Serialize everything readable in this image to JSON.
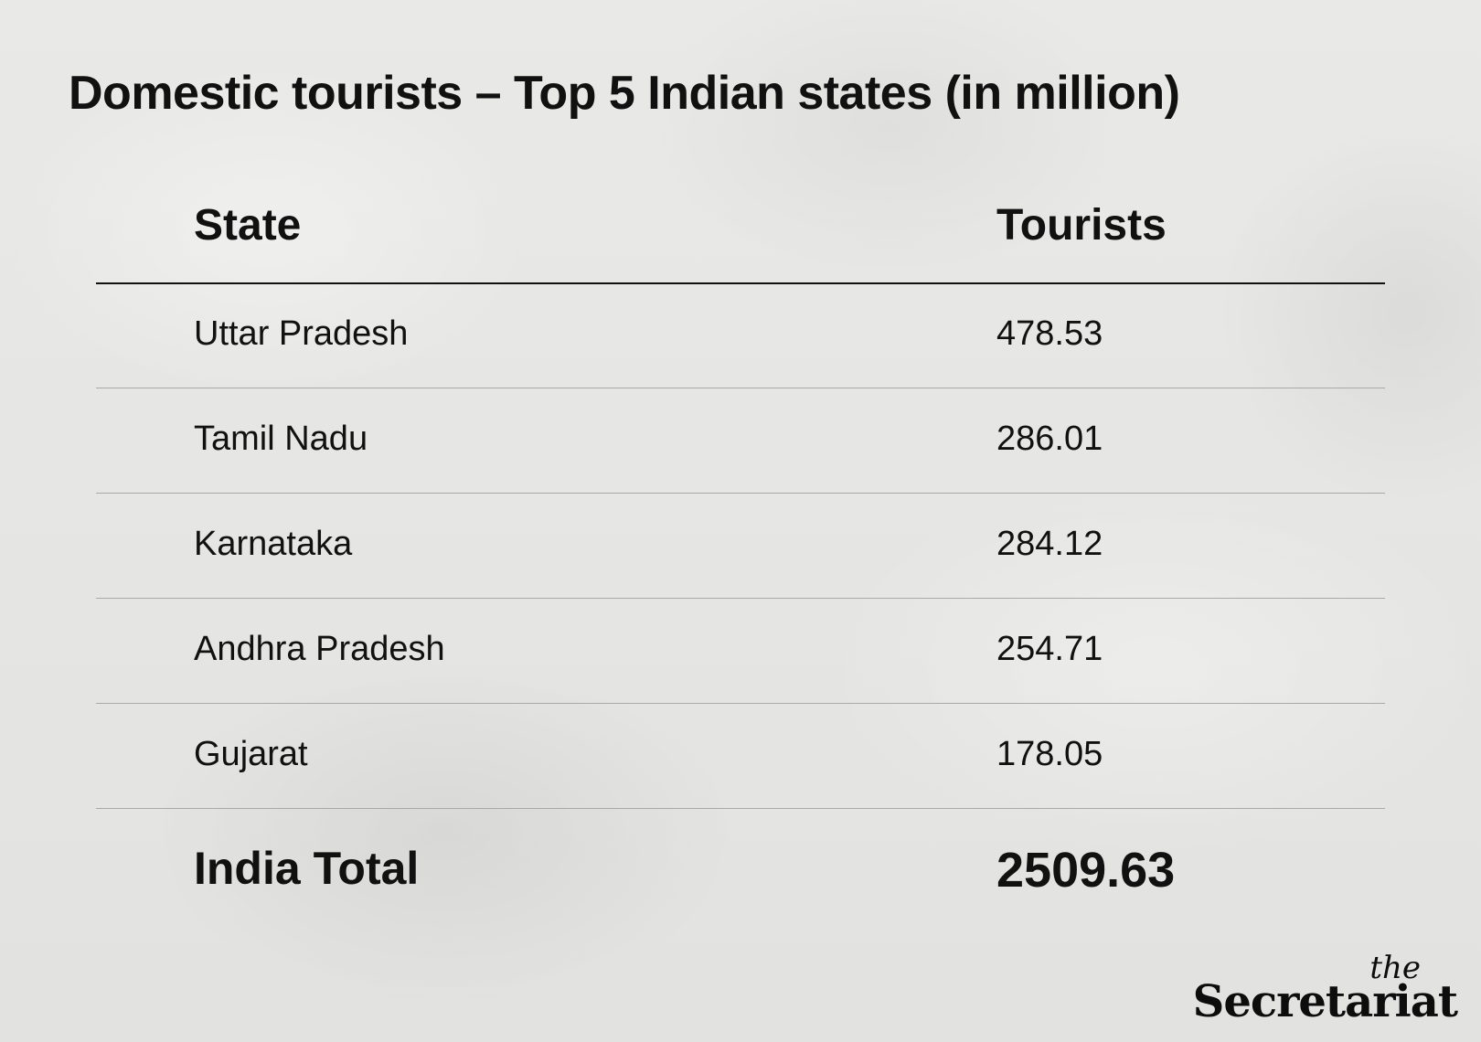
{
  "chart_data": {
    "type": "table",
    "title": "Domestic tourists – Top 5 Indian states (in million)",
    "columns": [
      "State",
      "Tourists"
    ],
    "rows": [
      {
        "state": "Uttar Pradesh",
        "tourists": "478.53"
      },
      {
        "state": "Tamil Nadu",
        "tourists": "286.01"
      },
      {
        "state": "Karnataka",
        "tourists": "284.12"
      },
      {
        "state": "Andhra Pradesh",
        "tourists": "254.71"
      },
      {
        "state": "Gujarat",
        "tourists": "178.05"
      }
    ],
    "total": {
      "label": "India Total",
      "value": "2509.63"
    }
  },
  "brand": {
    "the": "the",
    "name": "Secretariat"
  }
}
